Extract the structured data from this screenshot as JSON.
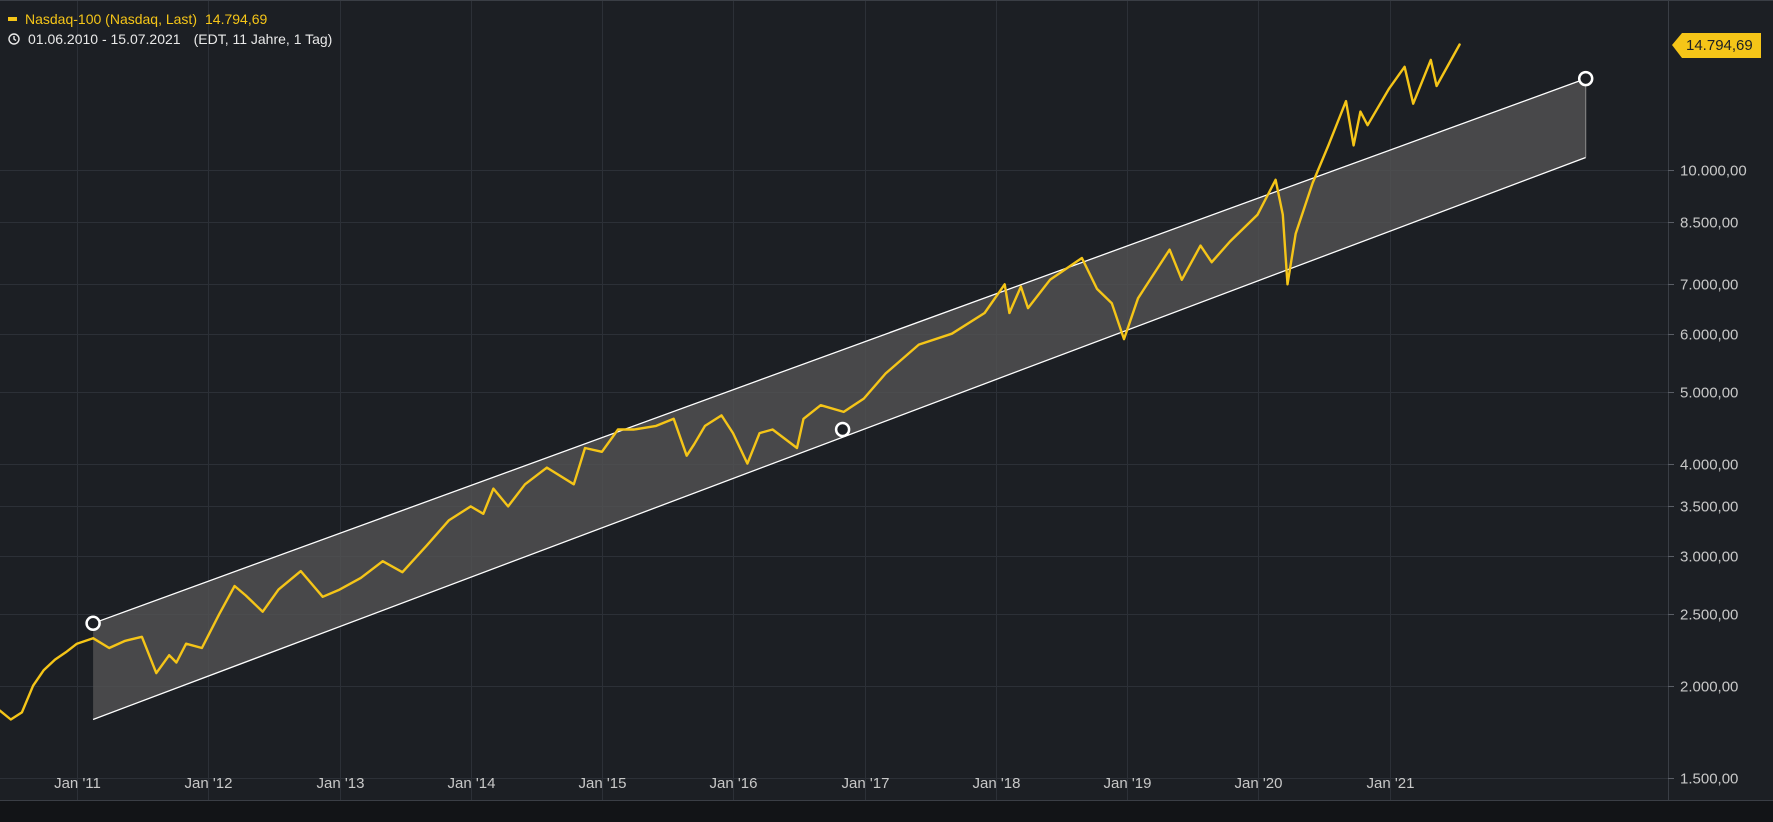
{
  "series_legend": {
    "name": "Nasdaq-100 (Nasdaq, Last)",
    "last_value": "14.794,69"
  },
  "range_info": {
    "dates": "01.06.2010 - 15.07.2021",
    "detail": "(EDT, 11 Jahre, 1 Tag)"
  },
  "price_flag": "14.794,69",
  "colors": {
    "background": "#1c1f24",
    "line": "#f5c518",
    "grid": "#2c3037",
    "channel_fill": "#555555",
    "channel_line": "#ffffff",
    "axis_text": "#c8c8c8"
  },
  "chart_data": {
    "type": "line",
    "title": "",
    "series": [
      {
        "name": "Nasdaq-100 (Nasdaq, Last)",
        "x": [
          "2010-06-01",
          "2010-07-01",
          "2010-08-01",
          "2010-09-01",
          "2010-10-01",
          "2010-11-01",
          "2010-12-01",
          "2011-01-01",
          "2011-02-15",
          "2011-04-01",
          "2011-05-15",
          "2011-07-01",
          "2011-08-10",
          "2011-09-15",
          "2011-10-05",
          "2011-11-01",
          "2011-12-15",
          "2012-02-01",
          "2012-03-15",
          "2012-04-15",
          "2012-06-01",
          "2012-07-15",
          "2012-09-15",
          "2012-11-15",
          "2013-01-01",
          "2013-03-01",
          "2013-05-01",
          "2013-06-25",
          "2013-09-01",
          "2013-11-01",
          "2014-01-01",
          "2014-02-05",
          "2014-03-05",
          "2014-04-15",
          "2014-06-01",
          "2014-08-01",
          "2014-10-15",
          "2014-11-15",
          "2015-01-01",
          "2015-02-15",
          "2015-04-01",
          "2015-06-01",
          "2015-07-20",
          "2015-08-25",
          "2015-09-15",
          "2015-10-15",
          "2015-11-30",
          "2016-01-01",
          "2016-02-10",
          "2016-03-15",
          "2016-04-20",
          "2016-06-27",
          "2016-07-15",
          "2016-09-01",
          "2016-11-04",
          "2016-12-30",
          "2017-03-01",
          "2017-06-01",
          "2017-09-01",
          "2017-12-01",
          "2018-01-26",
          "2018-02-08",
          "2018-03-12",
          "2018-04-01",
          "2018-06-01",
          "2018-08-29",
          "2018-10-10",
          "2018-11-20",
          "2018-12-24",
          "2019-02-01",
          "2019-04-30",
          "2019-06-03",
          "2019-07-25",
          "2019-08-25",
          "2019-10-15",
          "2019-12-31",
          "2020-02-19",
          "2020-03-10",
          "2020-03-23",
          "2020-04-15",
          "2020-06-01",
          "2020-07-15",
          "2020-09-02",
          "2020-09-23",
          "2020-10-12",
          "2020-11-01",
          "2020-12-31",
          "2021-02-12",
          "2021-03-08",
          "2021-04-26",
          "2021-05-12",
          "2021-07-15"
        ],
        "values": [
          1850,
          1800,
          1840,
          2000,
          2100,
          2170,
          2220,
          2280,
          2320,
          2250,
          2300,
          2330,
          2080,
          2200,
          2150,
          2280,
          2250,
          2500,
          2730,
          2650,
          2520,
          2700,
          2860,
          2640,
          2700,
          2800,
          2950,
          2850,
          3100,
          3350,
          3500,
          3420,
          3700,
          3500,
          3750,
          3950,
          3750,
          4200,
          4150,
          4450,
          4450,
          4500,
          4600,
          4100,
          4250,
          4500,
          4650,
          4400,
          4000,
          4400,
          4450,
          4200,
          4600,
          4800,
          4700,
          4900,
          5300,
          5800,
          6000,
          6400,
          7000,
          6400,
          6950,
          6500,
          7100,
          7600,
          6900,
          6600,
          5900,
          6700,
          7800,
          7100,
          7900,
          7500,
          8000,
          8700,
          9700,
          8700,
          7000,
          8200,
          9600,
          10800,
          12400,
          10800,
          12000,
          11500,
          12900,
          13800,
          12300,
          14100,
          13000,
          14794.69
        ]
      }
    ],
    "channel": {
      "upper": [
        {
          "x": "2011-02-15",
          "y": 2430
        },
        {
          "x": "2022-07-01",
          "y": 13300
        }
      ],
      "lower": [
        {
          "x": "2011-02-15",
          "y": 1800
        },
        {
          "x": "2022-07-01",
          "y": 10400
        }
      ],
      "handles": [
        {
          "x": "2011-02-15",
          "y": 2430
        },
        {
          "x": "2016-11-01",
          "y": 4450
        },
        {
          "x": "2022-07-01",
          "y": 13300
        }
      ]
    },
    "x_ticks": [
      {
        "date": "2011-01-01",
        "label": "Jan '11"
      },
      {
        "date": "2012-01-01",
        "label": "Jan '12"
      },
      {
        "date": "2013-01-01",
        "label": "Jan '13"
      },
      {
        "date": "2014-01-01",
        "label": "Jan '14"
      },
      {
        "date": "2015-01-01",
        "label": "Jan '15"
      },
      {
        "date": "2016-01-01",
        "label": "Jan '16"
      },
      {
        "date": "2017-01-01",
        "label": "Jan '17"
      },
      {
        "date": "2018-01-01",
        "label": "Jan '18"
      },
      {
        "date": "2019-01-01",
        "label": "Jan '19"
      },
      {
        "date": "2020-01-01",
        "label": "Jan '20"
      },
      {
        "date": "2021-01-01",
        "label": "Jan '21"
      }
    ],
    "y_ticks": [
      {
        "value": 1500,
        "label": "1.500,00"
      },
      {
        "value": 2000,
        "label": "2.000,00"
      },
      {
        "value": 2500,
        "label": "2.500,00"
      },
      {
        "value": 3000,
        "label": "3.000,00"
      },
      {
        "value": 3500,
        "label": "3.500,00"
      },
      {
        "value": 4000,
        "label": "4.000,00"
      },
      {
        "value": 5000,
        "label": "5.000,00"
      },
      {
        "value": 6000,
        "label": "6.000,00"
      },
      {
        "value": 7000,
        "label": "7.000,00"
      },
      {
        "value": 8500,
        "label": "8.500,00"
      },
      {
        "value": 10000,
        "label": "10.000,00"
      }
    ],
    "y_scale": "log",
    "xlim": [
      "2010-06-01",
      "2023-02-15"
    ],
    "ylim": [
      1400,
      17000
    ],
    "grid": true
  }
}
